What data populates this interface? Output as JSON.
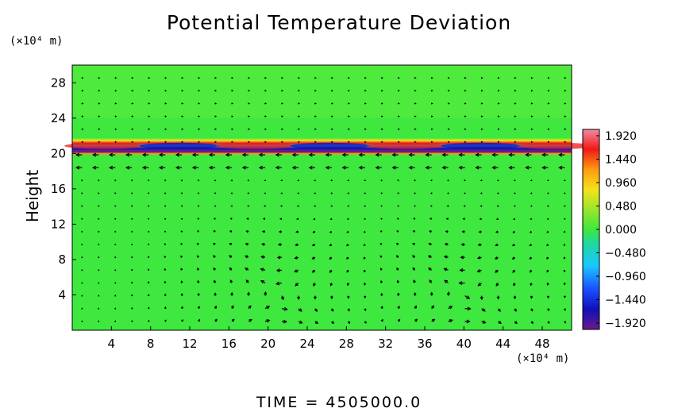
{
  "chart_data": {
    "type": "heatmap",
    "title": "Potential Temperature Deviation",
    "ylabel": "Height",
    "y_unit": "(×10⁴ m)",
    "x_unit": "(×10⁴ m)",
    "x_ticks": [
      4,
      8,
      12,
      16,
      20,
      24,
      28,
      32,
      36,
      40,
      44,
      48
    ],
    "y_ticks": [
      4,
      8,
      12,
      16,
      20,
      24,
      28
    ],
    "xlim": [
      0,
      51
    ],
    "ylim": [
      0,
      30
    ],
    "colorbar": {
      "labels": [
        "1.920",
        "1.440",
        "0.960",
        "0.480",
        "0.000",
        "−0.480",
        "−0.960",
        "−1.440",
        "−1.920"
      ],
      "range": [
        -1.92,
        1.92
      ]
    },
    "inversion_layer_height": 20.5,
    "circulation_centers": [
      {
        "x": 21,
        "y": 4
      },
      {
        "x": 40,
        "y": 4
      }
    ],
    "overlay": "wind vectors",
    "footer": "TIME  =  4505000.0"
  }
}
